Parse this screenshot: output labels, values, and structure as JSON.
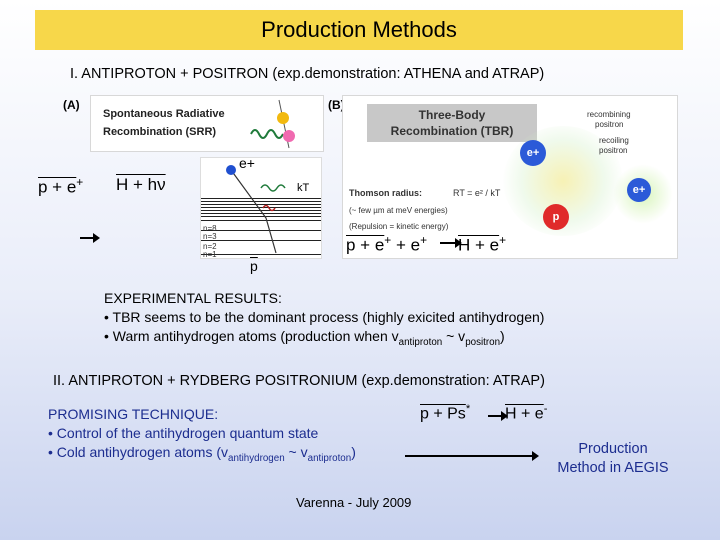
{
  "slide": {
    "title": "Production Methods",
    "section1": "I. ANTIPROTON + POSITRON (exp.demonstration: ATHENA and ATRAP)",
    "label_a": "(A)",
    "label_b": "(B)",
    "srr": {
      "line1": "Spontaneous Radiative",
      "line2": "Recombination (SRR)",
      "eplus": "e+",
      "kt": "kT",
      "n8": "n=8",
      "n3": "n=3",
      "n2": "n=2",
      "n1": "n=1"
    },
    "tbr": {
      "line1": "Three-Body",
      "line2": "Recombination (TBR)",
      "recombining": "recombining",
      "recombining2": "positron",
      "recoiling": "recoiling",
      "recoiling2": "positron",
      "thomson": "Thomson radius:",
      "thomson_formula": "RT = e² / kT",
      "few_um": "(~ few µm at meV energies)",
      "repulsion": "(Repulsion = kinetic energy)",
      "e_label": "e+",
      "p_label": "p"
    },
    "formula_left": "p + e",
    "formula_left_sup": "+",
    "formula_mid": "H + hν",
    "formula_right_p": "p + e",
    "formula_right_plus1": "+",
    "formula_right_e2": " + e",
    "formula_right_plus2": "+",
    "formula_right_h": "H + e",
    "formula_right_plus3": "+",
    "pbar_below": "p",
    "exp_heading": "EXPERIMENTAL RESULTS:",
    "exp_line1": "• TBR seems to be the dominant process (highly exicited antihydrogen)",
    "exp_line2_pre": "• Warm antihydrogen atoms (production when v",
    "exp_line2_sub1": "antiproton",
    "exp_line2_mid": " ~ v",
    "exp_line2_sub2": "positron",
    "exp_line2_post": ")",
    "section2": "II. ANTIPROTON + RYDBERG POSITRONIUM (exp.demonstration: ATRAP)",
    "promising_heading": "PROMISING TECHNIQUE:",
    "promising_line1": "• Control of the antihydrogen quantum state",
    "promising_line2_pre": "• Cold antihydrogen atoms (v",
    "promising_line2_sub1": "antihydrogen",
    "promising_line2_mid": " ~ v",
    "promising_line2_sub2": "antiproton",
    "promising_line2_post": ")",
    "ps_formula_p": "p + Ps",
    "ps_formula_sup": "*",
    "ps_formula_h": "H + e",
    "ps_formula_sup2": "-",
    "aegis_line1": "Production",
    "aegis_line2": "Method in AEGIS",
    "footer": "Varenna - July 2009"
  },
  "colors": {
    "title_bg": "#f7d74a",
    "accent_blue": "#1c2d8f",
    "positron_blue": "#1f4fd0",
    "proton_red": "#e02a2a"
  }
}
